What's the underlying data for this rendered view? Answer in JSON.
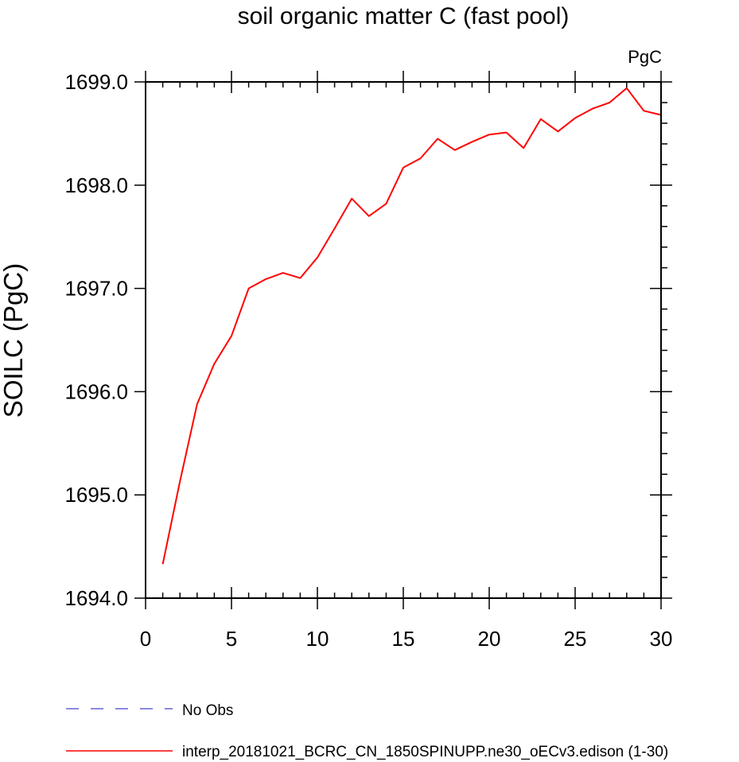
{
  "chart_data": {
    "type": "line",
    "title": "soil organic matter C (fast pool)",
    "units_label": "PgC",
    "xlabel": "",
    "ylabel": "SOILC  (PgC)",
    "xlim": [
      0,
      30
    ],
    "ylim": [
      1694.0,
      1699.0
    ],
    "x_ticks": [
      0,
      5,
      10,
      15,
      20,
      25,
      30
    ],
    "x_tick_labels": [
      "0",
      "5",
      "10",
      "15",
      "20",
      "25",
      "30"
    ],
    "y_ticks": [
      1694.0,
      1695.0,
      1696.0,
      1697.0,
      1698.0,
      1699.0
    ],
    "y_tick_labels": [
      "1694.0",
      "1695.0",
      "1696.0",
      "1697.0",
      "1698.0",
      "1699.0"
    ],
    "grid": false,
    "series": [
      {
        "name": "interp_20181021_BCRC_CN_1850SPINUPP.ne30_oECv3.edison (1-30)",
        "color": "#ff0000",
        "style": "solid",
        "x": [
          1,
          2,
          3,
          4,
          5,
          6,
          7,
          8,
          9,
          10,
          11,
          12,
          13,
          14,
          15,
          16,
          17,
          18,
          19,
          20,
          21,
          22,
          23,
          24,
          25,
          26,
          27,
          28,
          29,
          30
        ],
        "values": [
          1694.33,
          1695.13,
          1695.88,
          1696.27,
          1696.54,
          1697.0,
          1697.09,
          1697.15,
          1697.1,
          1697.3,
          1697.58,
          1697.87,
          1697.7,
          1697.82,
          1698.17,
          1698.26,
          1698.45,
          1698.34,
          1698.42,
          1698.49,
          1698.51,
          1698.36,
          1698.64,
          1698.52,
          1698.65,
          1698.74,
          1698.8,
          1698.94,
          1698.72,
          1698.68
        ]
      }
    ],
    "legend": {
      "placement": "bottom-left",
      "entries": [
        {
          "label": "No Obs",
          "color": "#4444cc",
          "style": "dashed"
        },
        {
          "label": "interp_20181021_BCRC_CN_1850SPINUPP.ne30_oECv3.edison (1-30)",
          "color": "#ff0000",
          "style": "solid"
        }
      ]
    }
  }
}
